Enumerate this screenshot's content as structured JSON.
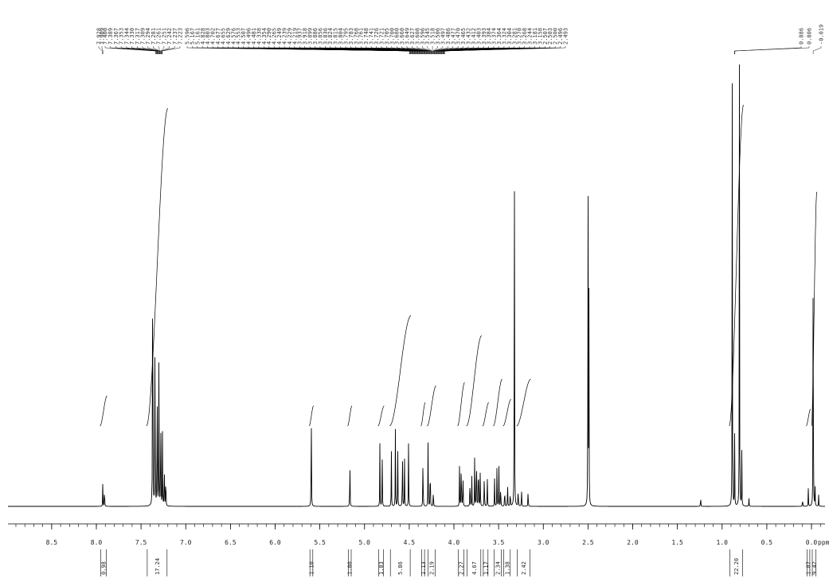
{
  "chart_data": {
    "type": "line",
    "xlabel": "ppm",
    "xlim": [
      9.0,
      -0.1
    ],
    "x_reversed": true,
    "x_ticks": [
      "8.5",
      "8.0",
      "7.5",
      "7.0",
      "6.5",
      "6.0",
      "5.5",
      "5.0",
      "4.5",
      "4.0",
      "3.5",
      "3.0",
      "2.5",
      "2.0",
      "1.5",
      "1.0",
      "0.5",
      "0.0"
    ],
    "x_tick_values": [
      8.5,
      8.0,
      7.5,
      7.0,
      6.5,
      6.0,
      5.5,
      5.0,
      4.5,
      4.0,
      3.5,
      3.0,
      2.5,
      2.0,
      1.5,
      1.0,
      0.5,
      0.0
    ],
    "grid": false,
    "peak_labels": [
      {
        "group": 1,
        "anchor_ppm": 7.93,
        "labels": [
          "7.928",
          "7.909"
        ]
      },
      {
        "group": 2,
        "anchor_ppm": 7.3,
        "labels": [
          "7.400",
          "7.389",
          "7.367",
          "7.353",
          "7.344",
          "7.330",
          "7.317",
          "7.309",
          "7.294",
          "7.281",
          "7.261",
          "7.251",
          "7.242",
          "7.237",
          "7.223"
        ]
      },
      {
        "group": 3,
        "anchor_ppm": 4.3,
        "labels": [
          "5.596",
          "5.167",
          "5.161",
          "4.828",
          "4.803",
          "4.702",
          "4.677",
          "4.655",
          "4.629",
          "4.576",
          "4.553",
          "4.507",
          "4.496",
          "4.481",
          "4.338",
          "4.354",
          "4.290",
          "4.265",
          "4.249",
          "4.239",
          "4.229",
          "4.219",
          "3.937",
          "3.918",
          "3.899",
          "3.886",
          "3.856",
          "3.836",
          "3.824",
          "3.815",
          "3.804",
          "3.795",
          "3.783",
          "3.768",
          "3.761",
          "3.748",
          "3.741",
          "3.726",
          "3.721",
          "3.705",
          "3.700",
          "3.680",
          "3.660",
          "3.649",
          "3.627",
          "3.608",
          "3.596",
          "3.545",
          "3.518",
          "3.506",
          "3.497",
          "3.486",
          "3.477",
          "3.470",
          "3.465",
          "3.432",
          "3.412",
          "3.403",
          "3.393",
          "3.384",
          "3.374",
          "3.364",
          "3.324",
          "3.304",
          "3.281",
          "3.270",
          "3.268",
          "3.244",
          "3.181",
          "3.158",
          "2.507",
          "2.503",
          "2.500",
          "2.496",
          "2.493"
        ]
      },
      {
        "group": 4,
        "anchor_ppm": 0.86,
        "labels": [
          "0.886",
          "0.806"
        ]
      },
      {
        "group": 5,
        "anchor_ppm": -0.019,
        "labels": [
          "-0.019"
        ]
      }
    ],
    "peaks": [
      {
        "ppm": 7.928,
        "height": 0.058
      },
      {
        "ppm": 7.909,
        "height": 0.06
      },
      {
        "ppm": 7.37,
        "height": 1.0
      },
      {
        "ppm": 7.344,
        "height": 0.5
      },
      {
        "ppm": 7.32,
        "height": 0.4
      },
      {
        "ppm": 7.3,
        "height": 0.36
      },
      {
        "ppm": 7.28,
        "height": 0.31
      },
      {
        "ppm": 7.26,
        "height": 0.18
      },
      {
        "ppm": 7.24,
        "height": 0.14
      },
      {
        "ppm": 7.223,
        "height": 0.1
      },
      {
        "ppm": 5.596,
        "height": 0.29
      },
      {
        "ppm": 5.164,
        "height": 0.14
      },
      {
        "ppm": 4.828,
        "height": 0.15
      },
      {
        "ppm": 4.803,
        "height": 0.16
      },
      {
        "ppm": 4.7,
        "height": 0.14
      },
      {
        "ppm": 4.655,
        "height": 0.17
      },
      {
        "ppm": 4.629,
        "height": 0.16
      },
      {
        "ppm": 4.576,
        "height": 0.17
      },
      {
        "ppm": 4.553,
        "height": 0.12
      },
      {
        "ppm": 4.507,
        "height": 0.17
      },
      {
        "ppm": 4.346,
        "height": 0.15
      },
      {
        "ppm": 4.29,
        "height": 0.15
      },
      {
        "ppm": 4.265,
        "height": 0.14
      },
      {
        "ppm": 4.23,
        "height": 0.05
      },
      {
        "ppm": 3.937,
        "height": 0.1
      },
      {
        "ppm": 3.918,
        "height": 0.16
      },
      {
        "ppm": 3.899,
        "height": 0.1
      },
      {
        "ppm": 3.82,
        "height": 0.09
      },
      {
        "ppm": 3.8,
        "height": 0.07
      },
      {
        "ppm": 3.768,
        "height": 0.11
      },
      {
        "ppm": 3.748,
        "height": 0.18
      },
      {
        "ppm": 3.726,
        "height": 0.16
      },
      {
        "ppm": 3.705,
        "height": 0.1
      },
      {
        "ppm": 3.66,
        "height": 0.1
      },
      {
        "ppm": 3.627,
        "height": 0.09
      },
      {
        "ppm": 3.545,
        "height": 0.07
      },
      {
        "ppm": 3.518,
        "height": 0.11
      },
      {
        "ppm": 3.497,
        "height": 0.09
      },
      {
        "ppm": 3.477,
        "height": 0.07
      },
      {
        "ppm": 3.432,
        "height": 0.06
      },
      {
        "ppm": 3.4,
        "height": 0.07
      },
      {
        "ppm": 3.37,
        "height": 0.05
      },
      {
        "ppm": 3.324,
        "height": 0.985
      },
      {
        "ppm": 3.281,
        "height": 0.06
      },
      {
        "ppm": 3.244,
        "height": 0.05
      },
      {
        "ppm": 3.17,
        "height": 0.05
      },
      {
        "ppm": 2.5,
        "height": 0.98
      },
      {
        "ppm": 2.49,
        "height": 0.45
      },
      {
        "ppm": 1.24,
        "height": 0.03
      },
      {
        "ppm": 0.886,
        "height": 0.98
      },
      {
        "ppm": 0.86,
        "height": 0.16
      },
      {
        "ppm": 0.806,
        "height": 0.98
      },
      {
        "ppm": 0.78,
        "height": 0.13
      },
      {
        "ppm": 0.7,
        "height": 0.02
      },
      {
        "ppm": 0.1,
        "height": 0.025
      },
      {
        "ppm": 0.035,
        "height": 0.045
      },
      {
        "ppm": -0.019,
        "height": 0.7
      },
      {
        "ppm": -0.04,
        "height": 0.04
      },
      {
        "ppm": -0.08,
        "height": 0.025
      }
    ],
    "integrals": [
      {
        "from": 7.96,
        "to": 7.88,
        "value": "0.98",
        "rise": 0.09
      },
      {
        "from": 7.44,
        "to": 7.2,
        "value": "17.24",
        "rise": 0.95
      },
      {
        "from": 5.62,
        "to": 5.57,
        "value": "1.10",
        "rise": 0.06
      },
      {
        "from": 5.19,
        "to": 5.14,
        "value": "1.00",
        "rise": 0.06
      },
      {
        "from": 4.85,
        "to": 4.78,
        "value": "1.03",
        "rise": 0.06
      },
      {
        "from": 4.72,
        "to": 4.48,
        "value": "5.86",
        "rise": 0.33
      },
      {
        "from": 4.37,
        "to": 4.32,
        "value": "1.13",
        "rise": 0.07
      },
      {
        "from": 4.3,
        "to": 4.2,
        "value": "2.19",
        "rise": 0.12
      },
      {
        "from": 3.96,
        "to": 3.88,
        "value": "2.27",
        "rise": 0.13
      },
      {
        "from": 3.86,
        "to": 3.69,
        "value": "4.67",
        "rise": 0.27
      },
      {
        "from": 3.68,
        "to": 3.61,
        "value": "1.17",
        "rise": 0.07
      },
      {
        "from": 3.56,
        "to": 3.46,
        "value": "2.34",
        "rise": 0.14
      },
      {
        "from": 3.45,
        "to": 3.36,
        "value": "1.38",
        "rise": 0.08
      },
      {
        "from": 3.3,
        "to": 3.14,
        "value": "2.42",
        "rise": 0.14
      },
      {
        "from": 0.92,
        "to": 0.76,
        "value": "22.20",
        "rise": 0.96
      },
      {
        "from": 0.06,
        "to": 0.01,
        "value": "1.07",
        "rise": 0.05
      },
      {
        "from": 0.0,
        "to": -0.06,
        "value": "9.42",
        "rise": 0.7
      }
    ]
  }
}
